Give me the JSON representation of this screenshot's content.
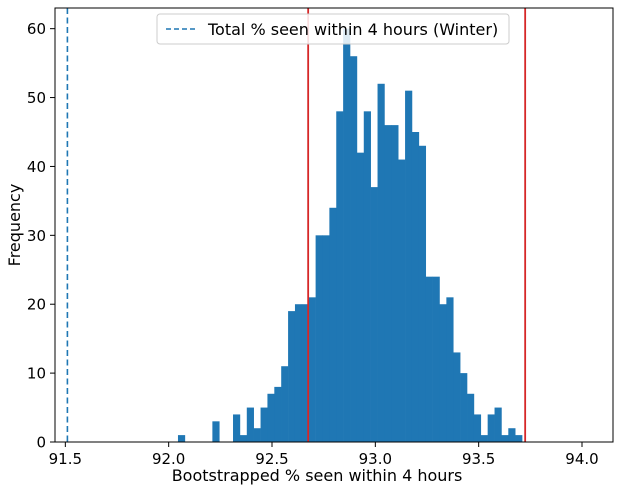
{
  "chart_data": {
    "type": "bar",
    "title": "",
    "xlabel": "Bootstrapped % seen within 4 hours",
    "ylabel": "Frequency",
    "xlim": [
      91.45,
      94.15
    ],
    "ylim": [
      0,
      63
    ],
    "xticks": [
      91.5,
      92.0,
      92.5,
      93.0,
      93.5,
      94.0
    ],
    "xtick_labels": [
      "91.5",
      "92.0",
      "92.5",
      "93.0",
      "93.5",
      "94.0"
    ],
    "yticks": [
      0,
      10,
      20,
      30,
      40,
      50,
      60
    ],
    "ytick_labels": [
      "0",
      "10",
      "20",
      "30",
      "40",
      "50",
      "60"
    ],
    "bin_start": 92.045,
    "bin_width": 0.0333,
    "counts": [
      1,
      0,
      0,
      0,
      0,
      3,
      0,
      0,
      4,
      1,
      5,
      2,
      5,
      7,
      8,
      11,
      19,
      20,
      20,
      21,
      30,
      30,
      34,
      48,
      60,
      56,
      42,
      48,
      37,
      52,
      46,
      46,
      41,
      51,
      45,
      43,
      24,
      24,
      20,
      21,
      13,
      10,
      7,
      4,
      1,
      4,
      5,
      1,
      2,
      1
    ],
    "bar_color": "#1f77b4",
    "vlines": [
      {
        "x": 91.51,
        "color": "#1f77b4",
        "style": "dashed",
        "label": "Total % seen within 4 hours (Winter)"
      },
      {
        "x": 92.675,
        "color": "#d62728",
        "style": "solid"
      },
      {
        "x": 93.725,
        "color": "#d62728",
        "style": "solid"
      }
    ],
    "legend": {
      "position": "top-center",
      "entries": [
        "Total % seen within 4 hours (Winter)"
      ]
    },
    "grid": false
  }
}
